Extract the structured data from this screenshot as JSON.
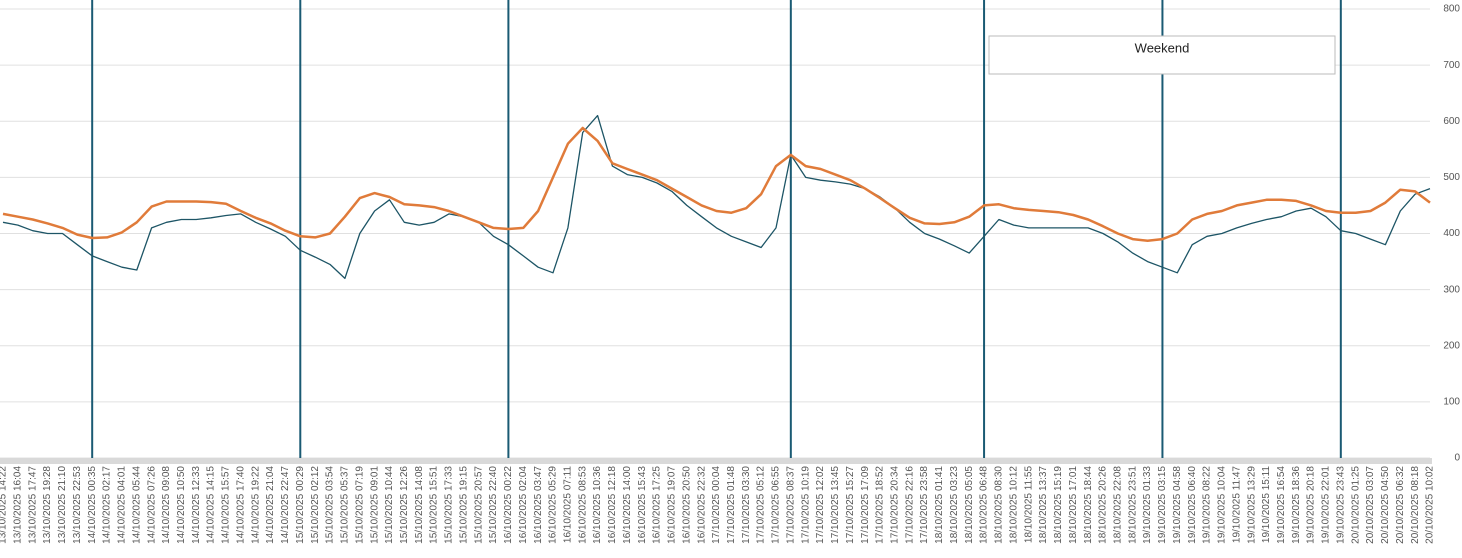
{
  "chart_data": {
    "type": "line",
    "categories": [
      "13/10/2025 14:22",
      "13/10/2025 16:04",
      "13/10/2025 17:47",
      "13/10/2025 19:28",
      "13/10/2025 21:10",
      "13/10/2025 22:53",
      "14/10/2025 00:35",
      "14/10/2025 02:17",
      "14/10/2025 04:01",
      "14/10/2025 05:44",
      "14/10/2025 07:26",
      "14/10/2025 09:08",
      "14/10/2025 10:50",
      "14/10/2025 12:33",
      "14/10/2025 14:15",
      "14/10/2025 15:57",
      "14/10/2025 17:40",
      "14/10/2025 19:22",
      "14/10/2025 21:04",
      "14/10/2025 22:47",
      "15/10/2025 00:29",
      "15/10/2025 02:12",
      "15/10/2025 03:54",
      "15/10/2025 05:37",
      "15/10/2025 07:19",
      "15/10/2025 09:01",
      "15/10/2025 10:44",
      "15/10/2025 12:26",
      "15/10/2025 14:08",
      "15/10/2025 15:51",
      "15/10/2025 17:33",
      "15/10/2025 19:15",
      "15/10/2025 20:57",
      "15/10/2025 22:40",
      "16/10/2025 00:22",
      "16/10/2025 02:04",
      "16/10/2025 03:47",
      "16/10/2025 05:29",
      "16/10/2025 07:11",
      "16/10/2025 08:53",
      "16/10/2025 10:36",
      "16/10/2025 12:18",
      "16/10/2025 14:00",
      "16/10/2025 15:43",
      "16/10/2025 17:25",
      "16/10/2025 19:07",
      "16/10/2025 20:50",
      "16/10/2025 22:32",
      "17/10/2025 00:04",
      "17/10/2025 01:48",
      "17/10/2025 03:30",
      "17/10/2025 05:12",
      "17/10/2025 06:55",
      "17/10/2025 08:37",
      "17/10/2025 10:19",
      "17/10/2025 12:02",
      "17/10/2025 13:45",
      "17/10/2025 15:27",
      "17/10/2025 17:09",
      "17/10/2025 18:52",
      "17/10/2025 20:34",
      "17/10/2025 22:16",
      "17/10/2025 23:58",
      "18/10/2025 01:41",
      "18/10/2025 03:23",
      "18/10/2025 05:05",
      "18/10/2025 06:48",
      "18/10/2025 08:30",
      "18/10/2025 10:12",
      "18/10/2025 11:55",
      "18/10/2025 13:37",
      "18/10/2025 15:19",
      "18/10/2025 17:01",
      "18/10/2025 18:44",
      "18/10/2025 20:26",
      "18/10/2025 22:08",
      "18/10/2025 23:51",
      "19/10/2025 01:33",
      "19/10/2025 03:15",
      "19/10/2025 04:58",
      "19/10/2025 06:40",
      "19/10/2025 08:22",
      "19/10/2025 10:04",
      "19/10/2025 11:47",
      "19/10/2025 13:29",
      "19/10/2025 15:11",
      "19/10/2025 16:54",
      "19/10/2025 18:36",
      "19/10/2025 20:18",
      "19/10/2025 22:01",
      "19/10/2025 23:43",
      "20/10/2025 01:25",
      "20/10/2025 03:07",
      "20/10/2025 04:50",
      "20/10/2025 06:32",
      "20/10/2025 08:18",
      "20/10/2025 10:02"
    ],
    "series": [
      {
        "color": "#1d5566",
        "values": [
          420,
          415,
          405,
          400,
          400,
          380,
          360,
          350,
          340,
          335,
          410,
          420,
          425,
          425,
          428,
          432,
          435,
          420,
          408,
          395,
          370,
          358,
          345,
          320,
          400,
          440,
          460,
          420,
          415,
          420,
          435,
          430,
          420,
          395,
          380,
          360,
          340,
          330,
          410,
          580,
          610,
          520,
          505,
          500,
          490,
          475,
          450,
          430,
          410,
          395,
          385,
          375,
          410,
          540,
          500,
          495,
          492,
          488,
          480,
          465,
          445,
          420,
          400,
          390,
          378,
          365,
          395,
          425,
          415,
          410,
          410,
          410,
          410,
          410,
          400,
          385,
          365,
          350,
          340,
          330,
          380,
          395,
          400,
          410,
          418,
          425,
          430,
          440,
          445,
          430,
          405,
          400,
          390,
          380,
          440,
          470,
          480
        ]
      },
      {
        "color": "#e07b3a",
        "values": [
          435,
          430,
          425,
          418,
          410,
          398,
          392,
          393,
          402,
          420,
          448,
          457,
          457,
          457,
          456,
          453,
          440,
          428,
          418,
          405,
          395,
          393,
          400,
          430,
          463,
          472,
          465,
          452,
          450,
          447,
          440,
          430,
          420,
          410,
          408,
          410,
          440,
          500,
          560,
          588,
          565,
          525,
          515,
          505,
          495,
          480,
          465,
          450,
          440,
          437,
          445,
          470,
          520,
          540,
          520,
          515,
          505,
          495,
          480,
          463,
          445,
          428,
          418,
          417,
          420,
          430,
          450,
          452,
          445,
          442,
          440,
          438,
          433,
          425,
          413,
          400,
          390,
          387,
          390,
          400,
          425,
          435,
          440,
          450,
          455,
          460,
          460,
          458,
          450,
          440,
          437,
          437,
          440,
          455,
          478,
          475,
          455
        ]
      }
    ],
    "markers": [
      "14/10/2025 00:35",
      "15/10/2025 00:29",
      "16/10/2025 00:22",
      "17/10/2025 08:37",
      "18/10/2025 06:48",
      "19/10/2025 03:15",
      "19/10/2025 23:43"
    ],
    "marker_color": "#1a5a73",
    "annotation": "Weekend",
    "ylim": [
      0,
      800
    ],
    "yticks": [
      0,
      100,
      200,
      300,
      400,
      500,
      600,
      700,
      800
    ],
    "grid": true
  }
}
